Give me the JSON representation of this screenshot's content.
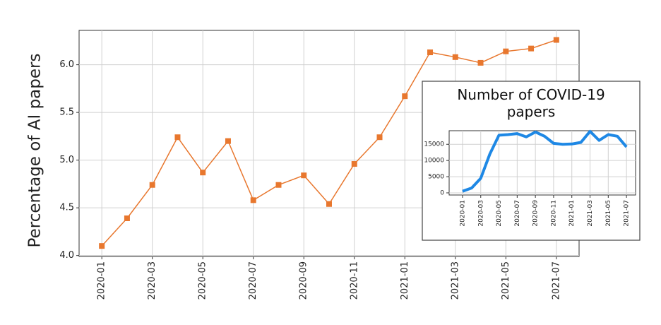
{
  "chart_data": [
    {
      "type": "line",
      "marker": "square",
      "color": "#e8772e",
      "grid": true,
      "ylabel": "Percentage of AI papers",
      "categories": [
        "2020-01",
        null,
        "2020-03",
        null,
        "2020-05",
        null,
        "2020-07",
        null,
        "2020-09",
        null,
        "2020-11",
        null,
        "2021-01",
        null,
        "2021-03",
        null,
        "2021-05",
        null,
        "2021-07"
      ],
      "values": [
        4.1,
        4.39,
        4.74,
        5.24,
        4.87,
        5.2,
        4.58,
        4.74,
        4.84,
        4.54,
        4.96,
        5.24,
        5.67,
        6.13,
        6.08,
        6.02,
        6.14,
        6.17,
        6.26
      ],
      "ylim": [
        3.99,
        6.36
      ],
      "yticks": [
        {
          "value": 4,
          "label": "4.0"
        },
        4.5,
        {
          "value": 5,
          "label": "5.0"
        },
        5.5,
        {
          "value": 6,
          "label": "6.0"
        }
      ]
    },
    {
      "type": "line",
      "color": "#1e88e5",
      "grid": true,
      "title": "Number of COVID-19 papers",
      "categories": [
        "2020-01",
        null,
        "2020-03",
        null,
        "2020-05",
        null,
        "2020-07",
        null,
        "2020-09",
        null,
        "2020-11",
        null,
        "2021-01",
        null,
        "2021-03",
        null,
        "2021-05",
        null,
        "2021-07"
      ],
      "values": [
        500,
        1500,
        4500,
        12000,
        17800,
        18000,
        18300,
        17300,
        18800,
        17500,
        15300,
        15000,
        15100,
        15600,
        19000,
        16200,
        18000,
        17500,
        14200
      ],
      "ylim": [
        -660,
        19200
      ],
      "yticks": [
        0,
        5000,
        10000,
        15000
      ]
    }
  ]
}
